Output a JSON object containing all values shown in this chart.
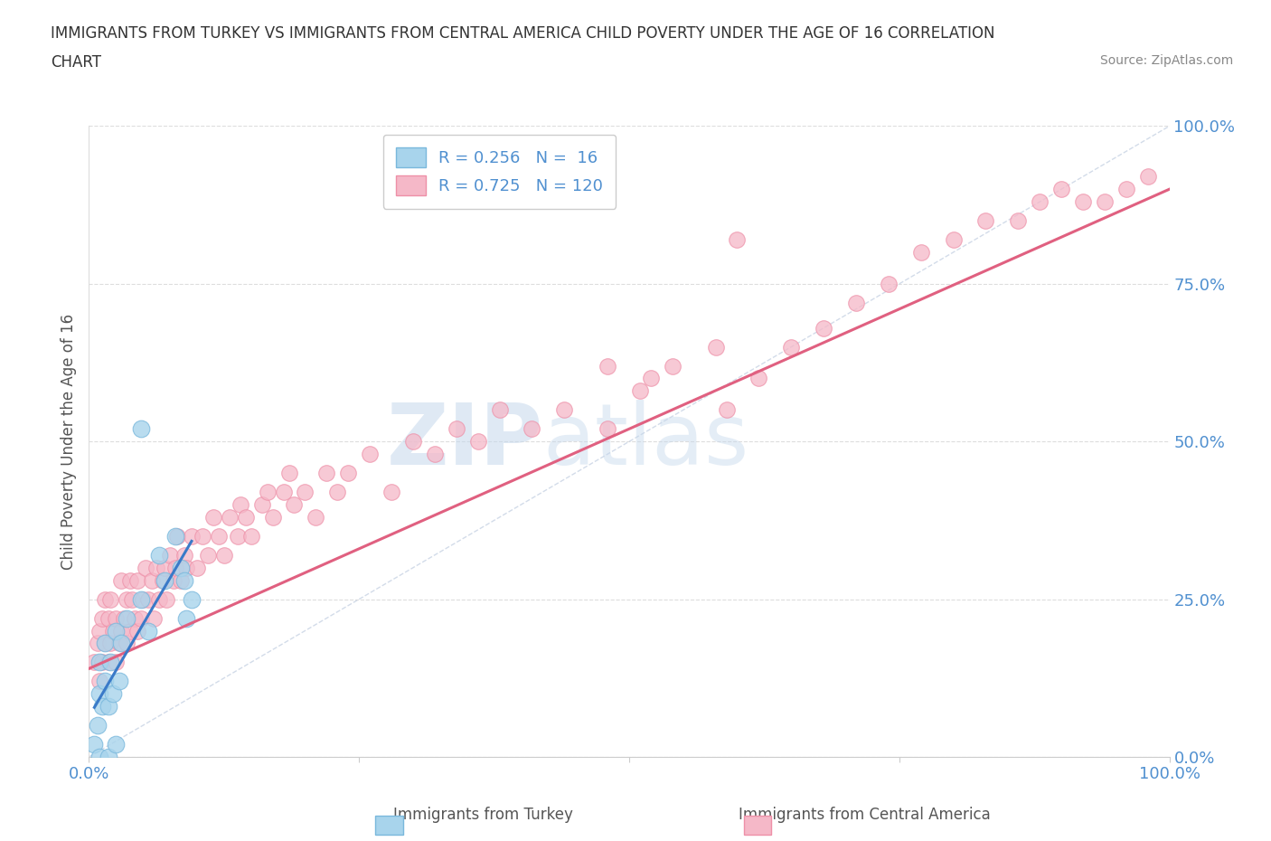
{
  "title_line1": "IMMIGRANTS FROM TURKEY VS IMMIGRANTS FROM CENTRAL AMERICA CHILD POVERTY UNDER THE AGE OF 16 CORRELATION",
  "title_line2": "CHART",
  "source": "Source: ZipAtlas.com",
  "ylabel": "Child Poverty Under the Age of 16",
  "xmin": 0.0,
  "xmax": 1.0,
  "ymin": 0.0,
  "ymax": 1.0,
  "ytick_labels": [
    "0.0%",
    "25.0%",
    "50.0%",
    "75.0%",
    "100.0%"
  ],
  "ytick_values": [
    0.0,
    0.25,
    0.5,
    0.75,
    1.0
  ],
  "turkey_R": 0.256,
  "turkey_N": 16,
  "central_R": 0.725,
  "central_N": 120,
  "legend_label_turkey": "Immigrants from Turkey",
  "legend_label_central": "Immigrants from Central America",
  "turkey_color": "#A8D4EC",
  "turkey_edge": "#7AB8DC",
  "central_color": "#F5B8C8",
  "central_edge": "#EE90A8",
  "turkey_line_color": "#3A7AC8",
  "central_line_color": "#E06080",
  "diagonal_color": "#C0CDE0",
  "watermark_zip": "ZIP",
  "watermark_atlas": "atlas",
  "watermark_color": "#C5D8EC",
  "turkey_scatter_x": [
    0.005,
    0.008,
    0.01,
    0.01,
    0.012,
    0.015,
    0.015,
    0.018,
    0.02,
    0.022,
    0.025,
    0.028,
    0.03,
    0.035,
    0.048,
    0.048,
    0.055,
    0.065,
    0.07,
    0.08,
    0.085,
    0.088,
    0.09,
    0.095,
    0.01,
    0.018,
    0.025
  ],
  "turkey_scatter_y": [
    0.02,
    0.05,
    0.1,
    0.15,
    0.08,
    0.12,
    0.18,
    0.08,
    0.15,
    0.1,
    0.2,
    0.12,
    0.18,
    0.22,
    0.52,
    0.25,
    0.2,
    0.32,
    0.28,
    0.35,
    0.3,
    0.28,
    0.22,
    0.25,
    0.0,
    0.0,
    0.02
  ],
  "central_scatter_x": [
    0.005,
    0.008,
    0.01,
    0.01,
    0.012,
    0.012,
    0.015,
    0.015,
    0.018,
    0.018,
    0.02,
    0.02,
    0.022,
    0.025,
    0.025,
    0.028,
    0.03,
    0.03,
    0.032,
    0.035,
    0.035,
    0.038,
    0.038,
    0.04,
    0.042,
    0.045,
    0.045,
    0.048,
    0.05,
    0.052,
    0.055,
    0.058,
    0.06,
    0.062,
    0.065,
    0.068,
    0.07,
    0.072,
    0.075,
    0.078,
    0.08,
    0.082,
    0.085,
    0.088,
    0.09,
    0.095,
    0.1,
    0.105,
    0.11,
    0.115,
    0.12,
    0.125,
    0.13,
    0.138,
    0.14,
    0.145,
    0.15,
    0.16,
    0.165,
    0.17,
    0.18,
    0.185,
    0.19,
    0.2,
    0.21,
    0.22,
    0.23,
    0.24,
    0.26,
    0.28,
    0.3,
    0.32,
    0.34,
    0.36,
    0.38,
    0.41,
    0.44,
    0.48,
    0.48,
    0.51,
    0.52,
    0.54,
    0.58,
    0.59,
    0.6,
    0.62,
    0.65,
    0.68,
    0.71,
    0.74,
    0.77,
    0.8,
    0.83,
    0.86,
    0.88,
    0.9,
    0.92,
    0.94,
    0.96,
    0.98
  ],
  "central_scatter_y": [
    0.15,
    0.18,
    0.12,
    0.2,
    0.15,
    0.22,
    0.18,
    0.25,
    0.15,
    0.22,
    0.18,
    0.25,
    0.2,
    0.15,
    0.22,
    0.18,
    0.2,
    0.28,
    0.22,
    0.18,
    0.25,
    0.2,
    0.28,
    0.25,
    0.22,
    0.2,
    0.28,
    0.22,
    0.25,
    0.3,
    0.25,
    0.28,
    0.22,
    0.3,
    0.25,
    0.28,
    0.3,
    0.25,
    0.32,
    0.28,
    0.3,
    0.35,
    0.28,
    0.32,
    0.3,
    0.35,
    0.3,
    0.35,
    0.32,
    0.38,
    0.35,
    0.32,
    0.38,
    0.35,
    0.4,
    0.38,
    0.35,
    0.4,
    0.42,
    0.38,
    0.42,
    0.45,
    0.4,
    0.42,
    0.38,
    0.45,
    0.42,
    0.45,
    0.48,
    0.42,
    0.5,
    0.48,
    0.52,
    0.5,
    0.55,
    0.52,
    0.55,
    0.52,
    0.62,
    0.58,
    0.6,
    0.62,
    0.65,
    0.55,
    0.82,
    0.6,
    0.65,
    0.68,
    0.72,
    0.75,
    0.8,
    0.82,
    0.85,
    0.85,
    0.88,
    0.9,
    0.88,
    0.88,
    0.9,
    0.92
  ],
  "central_line_x0": 0.0,
  "central_line_x1": 1.0,
  "central_line_y0": 0.14,
  "central_line_y1": 0.9
}
